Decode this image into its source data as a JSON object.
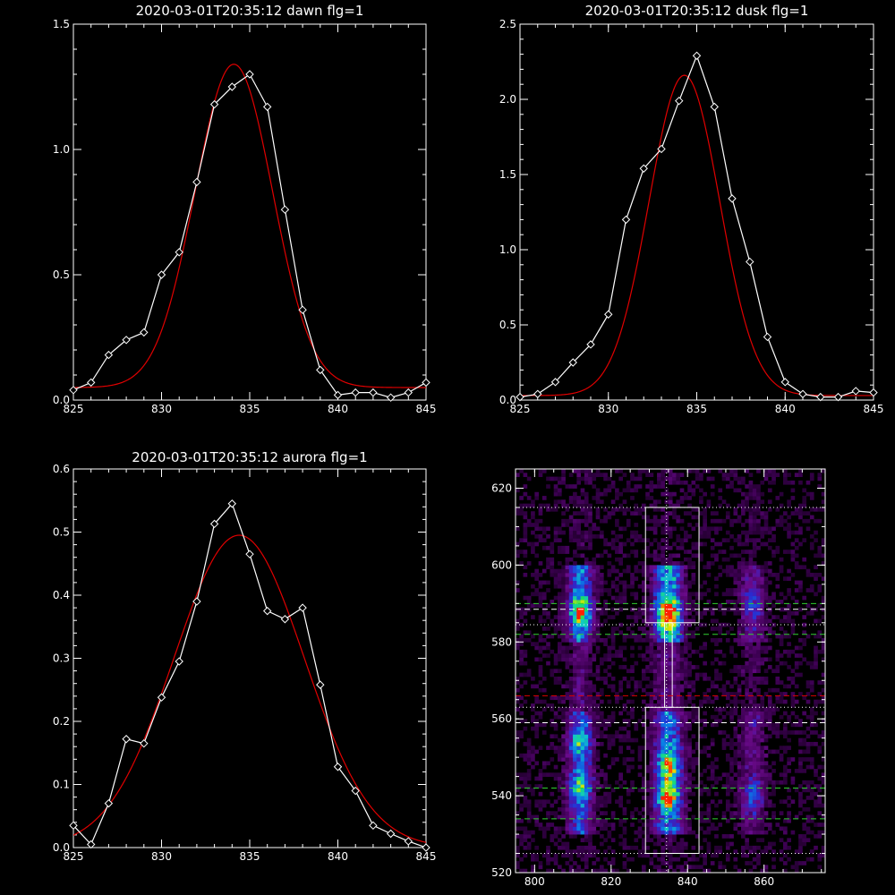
{
  "chart_data": [
    {
      "type": "line",
      "title": "2020-03-01T20:35:12 dawn flg=1",
      "xlim": [
        825,
        845
      ],
      "ylim": [
        0,
        1.5
      ],
      "xticks": [
        825,
        830,
        835,
        840,
        845
      ],
      "xtick_labels": [
        "825",
        "830",
        "835",
        "840",
        "845"
      ],
      "yticks": [
        0,
        0.5,
        1.0,
        1.5
      ],
      "ytick_labels": [
        "0.0",
        "0.5",
        "1.0",
        "1.5"
      ],
      "series": [
        {
          "style": "white-diamond-line",
          "color": "#ffffff",
          "x": [
            825,
            826,
            827,
            828,
            829,
            830,
            831,
            832,
            833,
            834,
            835,
            836,
            837,
            838,
            839,
            840,
            841,
            842,
            843,
            844,
            845
          ],
          "y": [
            0.04,
            0.07,
            0.18,
            0.24,
            0.27,
            0.5,
            0.59,
            0.87,
            1.18,
            1.25,
            1.3,
            1.17,
            0.76,
            0.36,
            0.12,
            0.02,
            0.03,
            0.03,
            0.01,
            0.03,
            0.07
          ]
        },
        {
          "style": "red-gaussian-fit",
          "color": "#e00000",
          "fit": {
            "amplitude": 1.29,
            "center": 834.1,
            "sigma": 2.2,
            "offset": 0.05
          }
        }
      ]
    },
    {
      "type": "line",
      "title": "2020-03-01T20:35:12 dusk flg=1",
      "xlim": [
        825,
        845
      ],
      "ylim": [
        0,
        2.5
      ],
      "xticks": [
        825,
        830,
        835,
        840,
        845
      ],
      "xtick_labels": [
        "825",
        "830",
        "835",
        "840",
        "845"
      ],
      "yticks": [
        0,
        0.5,
        1.0,
        1.5,
        2.0,
        2.5
      ],
      "ytick_labels": [
        "0.0",
        "0.5",
        "1.0",
        "1.5",
        "2.0",
        "2.5"
      ],
      "series": [
        {
          "style": "white-diamond-line",
          "color": "#ffffff",
          "x": [
            825,
            826,
            827,
            828,
            829,
            830,
            831,
            832,
            833,
            834,
            835,
            836,
            837,
            838,
            839,
            840,
            841,
            842,
            843,
            844,
            845
          ],
          "y": [
            0.02,
            0.04,
            0.12,
            0.25,
            0.37,
            0.57,
            1.2,
            1.54,
            1.67,
            1.99,
            2.29,
            1.95,
            1.34,
            0.92,
            0.42,
            0.12,
            0.04,
            0.02,
            0.02,
            0.06,
            0.05
          ]
        },
        {
          "style": "red-gaussian-fit",
          "color": "#e00000",
          "fit": {
            "amplitude": 2.13,
            "center": 834.3,
            "sigma": 2.0,
            "offset": 0.03
          }
        }
      ]
    },
    {
      "type": "line",
      "title": "2020-03-01T20:35:12 aurora flg=1",
      "xlim": [
        825,
        845
      ],
      "ylim": [
        0,
        0.6
      ],
      "xticks": [
        825,
        830,
        835,
        840,
        845
      ],
      "xtick_labels": [
        "825",
        "830",
        "835",
        "840",
        "845"
      ],
      "yticks": [
        0,
        0.1,
        0.2,
        0.3,
        0.4,
        0.5,
        0.6
      ],
      "ytick_labels": [
        "0.0",
        "0.1",
        "0.2",
        "0.3",
        "0.4",
        "0.5",
        "0.6"
      ],
      "series": [
        {
          "style": "white-diamond-line",
          "color": "#ffffff",
          "x": [
            825,
            826,
            827,
            828,
            829,
            830,
            831,
            832,
            833,
            834,
            835,
            836,
            837,
            838,
            839,
            840,
            841,
            842,
            843,
            844,
            845
          ],
          "y": [
            0.035,
            0.005,
            0.07,
            0.172,
            0.165,
            0.238,
            0.295,
            0.39,
            0.513,
            0.545,
            0.465,
            0.375,
            0.362,
            0.38,
            0.258,
            0.128,
            0.09,
            0.035,
            0.022,
            0.01,
            0.0
          ]
        },
        {
          "style": "red-gaussian-fit",
          "color": "#e00000",
          "fit": {
            "amplitude": 0.495,
            "center": 834.4,
            "sigma": 3.7,
            "offset": 0.0
          }
        }
      ]
    },
    {
      "type": "heatmap",
      "xlim": [
        795,
        876
      ],
      "ylim": [
        520,
        625
      ],
      "xticks": [
        800,
        820,
        840,
        860
      ],
      "xtick_labels": [
        "800",
        "820",
        "840",
        "860"
      ],
      "yticks": [
        520,
        540,
        560,
        580,
        600,
        620
      ],
      "ytick_labels": [
        "520",
        "540",
        "560",
        "580",
        "600",
        "620"
      ],
      "colormap": [
        "#000000",
        "#3a004f",
        "#6a0a8a",
        "#2a2ad0",
        "#0a7ae6",
        "#12c8c8",
        "#18e060",
        "#e8e800",
        "#ff2000"
      ],
      "bright_columns": [
        {
          "center": 812,
          "half_width": 3.5,
          "strength": 0.45
        },
        {
          "center": 835,
          "half_width": 4.0,
          "strength": 0.55
        },
        {
          "center": 857,
          "half_width": 3.5,
          "strength": 0.22
        }
      ],
      "hotspots": [
        {
          "x": 835,
          "y": 587.5,
          "peak": 1.0
        },
        {
          "x": 835,
          "y": 540,
          "peak": 0.72
        },
        {
          "x": 835,
          "y": 548,
          "peak": 0.55
        },
        {
          "x": 812,
          "y": 588,
          "peak": 0.72
        },
        {
          "x": 812,
          "y": 542,
          "peak": 0.45
        },
        {
          "x": 812,
          "y": 554,
          "peak": 0.35
        },
        {
          "x": 857,
          "y": 540,
          "peak": 0.3
        },
        {
          "x": 857,
          "y": 590,
          "peak": 0.22
        }
      ],
      "boxes": [
        {
          "x0": 829,
          "x1": 843,
          "y0": 585,
          "y1": 615
        },
        {
          "x0": 829,
          "x1": 843,
          "y0": 525,
          "y1": 563
        },
        {
          "x0": 834,
          "x1": 836,
          "y0": 563,
          "y1": 585
        }
      ],
      "vline_dotted": 834.5,
      "hlines": [
        {
          "y": 615,
          "style": "white-dotted",
          "color": "#ffffff"
        },
        {
          "y": 525,
          "style": "white-dotted",
          "color": "#ffffff"
        },
        {
          "y": 584.5,
          "style": "white-dotted",
          "color": "#ffffff"
        },
        {
          "y": 588.5,
          "style": "white-dashed",
          "color": "#ffffff"
        },
        {
          "y": 590,
          "style": "green-dashed",
          "color": "#30d030"
        },
        {
          "y": 582,
          "style": "green-dashed",
          "color": "#30d030"
        },
        {
          "y": 566,
          "style": "red-dashed",
          "color": "#e00000"
        },
        {
          "y": 559,
          "style": "white-dashed",
          "color": "#ffffff"
        },
        {
          "y": 563,
          "style": "white-dotted",
          "color": "#ffffff"
        },
        {
          "y": 542,
          "style": "green-dashed",
          "color": "#30d030"
        },
        {
          "y": 534,
          "style": "green-dashed",
          "color": "#30d030"
        }
      ]
    }
  ]
}
